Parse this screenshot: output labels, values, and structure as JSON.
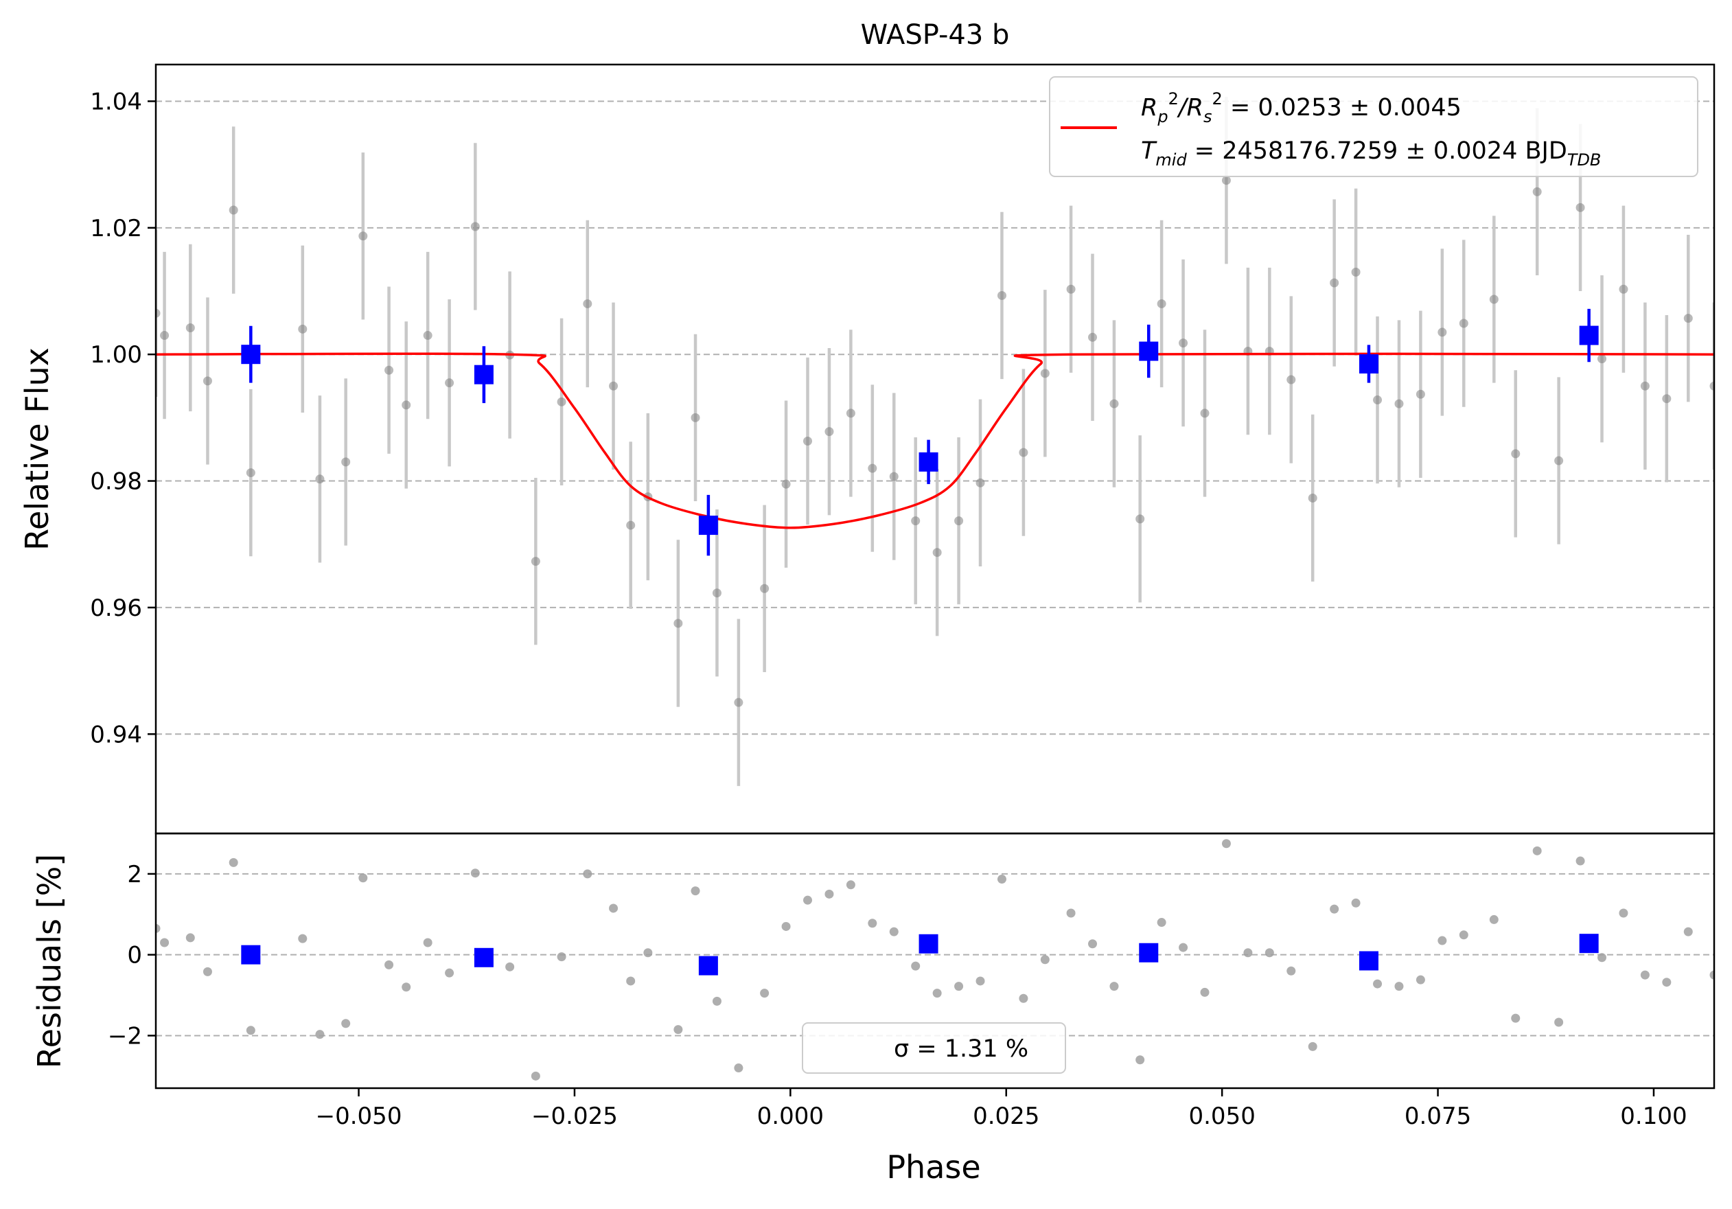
{
  "chart_data": {
    "type": "scatter",
    "title": "WASP-43 b",
    "xlabel": "Phase",
    "xlim": [
      -0.0735,
      0.107
    ],
    "x_ticks": [
      -0.05,
      -0.025,
      0.0,
      0.025,
      0.05,
      0.075,
      0.1
    ],
    "x_tick_labels": [
      "−0.050",
      "−0.025",
      "0.000",
      "0.025",
      "0.050",
      "0.075",
      "0.100"
    ],
    "grid": true,
    "top_panel": {
      "ylabel": "Relative Flux",
      "ylim": [
        0.9243,
        1.0458
      ],
      "y_ticks": [
        0.94,
        0.96,
        0.98,
        1.0,
        1.02,
        1.04
      ],
      "y_tick_labels": [
        "0.94",
        "0.96",
        "0.98",
        "1.00",
        "1.02",
        "1.04"
      ],
      "legend": {
        "placement": "top-right",
        "line_color": "#ff0000",
        "line1": {
          "prefix": "R",
          "sub1": "p",
          "sup1": "2",
          "slash": "/R",
          "sub2": "s",
          "sup2": "2",
          "value": " = 0.0253 ± 0.0045"
        },
        "line2": {
          "prefix": "T",
          "sub": "mid",
          "value": " = 2458176.7259 ± 0.0024 BJD",
          "unit_sub": "TDB"
        }
      },
      "model": {
        "color": "#ff0000",
        "depth": 0.0253,
        "x": [
          -0.0735,
          -0.0325,
          -0.029,
          -0.025,
          -0.0215,
          -0.0185,
          -0.015,
          -0.01,
          -0.005,
          0.0,
          0.005,
          0.01,
          0.015,
          0.0185,
          0.0215,
          0.025,
          0.029,
          0.0325,
          0.107
        ],
        "flux": [
          1.0,
          1.0,
          0.9985,
          0.9915,
          0.9845,
          0.9792,
          0.9765,
          0.9745,
          0.9732,
          0.9726,
          0.9732,
          0.9745,
          0.9765,
          0.9792,
          0.9845,
          0.9915,
          0.9985,
          1.0,
          1.0
        ]
      },
      "raw_points": {
        "color": "#808080",
        "x": [
          -0.0735,
          -0.0725,
          -0.0695,
          -0.0675,
          -0.0645,
          -0.0625,
          -0.0565,
          -0.0545,
          -0.0515,
          -0.0495,
          -0.0465,
          -0.0445,
          -0.042,
          -0.0395,
          -0.0365,
          -0.0325,
          -0.0295,
          -0.0265,
          -0.0235,
          -0.0205,
          -0.0185,
          -0.0165,
          -0.013,
          -0.011,
          -0.0085,
          -0.006,
          -0.003,
          -0.0005,
          0.002,
          0.0045,
          0.007,
          0.0095,
          0.012,
          0.0145,
          0.017,
          0.0195,
          0.022,
          0.0245,
          0.027,
          0.0295,
          0.0325,
          0.035,
          0.0375,
          0.0405,
          0.043,
          0.0455,
          0.048,
          0.0505,
          0.053,
          0.0555,
          0.058,
          0.0605,
          0.063,
          0.0655,
          0.068,
          0.0705,
          0.073,
          0.0755,
          0.078,
          0.0815,
          0.084,
          0.0865,
          0.089,
          0.0915,
          0.094,
          0.0965,
          0.099,
          0.1015,
          0.104,
          0.107
        ],
        "flux": [
          1.0065,
          1.003,
          1.0042,
          0.9958,
          1.0228,
          0.9813,
          1.004,
          0.9803,
          0.983,
          1.0187,
          0.9975,
          0.992,
          1.003,
          0.9955,
          1.0202,
          0.9999,
          0.9673,
          0.9925,
          1.008,
          0.995,
          0.973,
          0.9775,
          0.9575,
          0.99,
          0.9623,
          0.945,
          0.963,
          0.9795,
          0.9863,
          0.9878,
          0.9907,
          0.982,
          0.9807,
          0.9737,
          0.9687,
          0.9737,
          0.9797,
          1.0093,
          0.9845,
          0.997,
          1.0103,
          1.0027,
          0.9922,
          0.974,
          1.008,
          1.0018,
          0.9907,
          1.0275,
          1.0005,
          1.0005,
          0.996,
          0.9773,
          1.0113,
          1.013,
          0.9928,
          0.9922,
          0.9937,
          1.0035,
          1.0049,
          1.0087,
          0.9843,
          1.0257,
          0.9832,
          1.0232,
          0.9993,
          1.0103,
          0.995,
          0.993,
          1.0057,
          0.995
        ],
        "error": 0.0132
      },
      "binned_points": {
        "color": "#0000ff",
        "x": [
          -0.0625,
          -0.0355,
          -0.0095,
          0.016,
          0.0415,
          0.067,
          0.0925
        ],
        "flux": [
          1.0,
          0.9968,
          0.973,
          0.983,
          1.0005,
          0.9985,
          1.003
        ],
        "error": [
          0.0045,
          0.0045,
          0.0048,
          0.0035,
          0.0042,
          0.003,
          0.0042
        ]
      }
    },
    "bottom_panel": {
      "ylabel": "Residuals [%]",
      "ylim": [
        -3.3,
        3.0
      ],
      "y_ticks": [
        -2,
        0,
        2
      ],
      "y_tick_labels": [
        "−2",
        "0",
        "2"
      ],
      "legend": {
        "placement": "bottom-center",
        "text": "σ = 1.31 %"
      },
      "raw_residuals": {
        "color": "#a0a0a0",
        "x": [
          -0.0735,
          -0.0725,
          -0.0695,
          -0.0675,
          -0.0645,
          -0.0625,
          -0.0565,
          -0.0545,
          -0.0515,
          -0.0495,
          -0.0465,
          -0.0445,
          -0.042,
          -0.0395,
          -0.0365,
          -0.0325,
          -0.0295,
          -0.0265,
          -0.0235,
          -0.0205,
          -0.0185,
          -0.0165,
          -0.013,
          -0.011,
          -0.0085,
          -0.006,
          -0.003,
          -0.0005,
          0.002,
          0.0045,
          0.007,
          0.0095,
          0.012,
          0.0145,
          0.017,
          0.0195,
          0.022,
          0.0245,
          0.027,
          0.0295,
          0.0325,
          0.035,
          0.0375,
          0.0405,
          0.043,
          0.0455,
          0.048,
          0.0505,
          0.053,
          0.0555,
          0.058,
          0.0605,
          0.063,
          0.0655,
          0.068,
          0.0705,
          0.073,
          0.0755,
          0.078,
          0.0815,
          0.084,
          0.0865,
          0.089,
          0.0915,
          0.094,
          0.0965,
          0.099,
          0.1015,
          0.104,
          0.107
        ],
        "value": [
          0.65,
          0.3,
          0.42,
          -0.42,
          2.28,
          -1.87,
          0.4,
          -1.97,
          -1.7,
          1.9,
          -0.25,
          -0.8,
          0.3,
          -0.45,
          2.02,
          -0.3,
          -3.0,
          -0.05,
          2.0,
          1.15,
          -0.65,
          0.05,
          -1.85,
          1.58,
          -1.15,
          -2.8,
          -0.95,
          0.7,
          1.35,
          1.5,
          1.73,
          0.78,
          0.57,
          -0.28,
          -0.95,
          -0.78,
          -0.65,
          1.87,
          -1.08,
          -0.12,
          1.03,
          0.27,
          -0.78,
          -2.6,
          0.8,
          0.18,
          -0.93,
          2.75,
          0.05,
          0.05,
          -0.4,
          -2.27,
          1.13,
          1.28,
          -0.72,
          -0.78,
          -0.62,
          0.35,
          0.49,
          0.87,
          -1.57,
          2.57,
          -1.67,
          2.32,
          -0.07,
          1.03,
          -0.5,
          -0.68,
          0.57,
          -0.5
        ]
      },
      "binned_residuals": {
        "color": "#0000ff",
        "x": [
          -0.0625,
          -0.0355,
          -0.0095,
          0.016,
          0.0415,
          0.067,
          0.0925
        ],
        "value": [
          0.0,
          -0.07,
          -0.27,
          0.27,
          0.05,
          -0.15,
          0.28
        ]
      }
    }
  }
}
